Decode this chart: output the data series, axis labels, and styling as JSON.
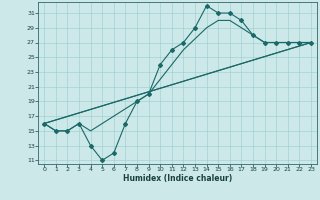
{
  "xlabel": "Humidex (Indice chaleur)",
  "xlim": [
    -0.5,
    23.5
  ],
  "ylim": [
    10.5,
    32.5
  ],
  "yticks": [
    11,
    13,
    15,
    17,
    19,
    21,
    23,
    25,
    27,
    29,
    31
  ],
  "xticks": [
    0,
    1,
    2,
    3,
    4,
    5,
    6,
    7,
    8,
    9,
    10,
    11,
    12,
    13,
    14,
    15,
    16,
    17,
    18,
    19,
    20,
    21,
    22,
    23
  ],
  "bg_color": "#cce8e8",
  "line_color": "#1a6868",
  "jagged_x": [
    0,
    1,
    2,
    3,
    4,
    5,
    6,
    7,
    8,
    9,
    10,
    11,
    12,
    13,
    14,
    15,
    16,
    17,
    18,
    19,
    20,
    21,
    22,
    23
  ],
  "jagged_y": [
    16,
    15,
    15,
    16,
    13,
    11,
    12,
    16,
    19,
    20,
    24,
    26,
    27,
    29,
    32,
    31,
    31,
    30,
    28,
    27,
    27,
    27,
    27,
    27
  ],
  "smooth_x": [
    0,
    1,
    2,
    3,
    4,
    5,
    6,
    7,
    8,
    9,
    10,
    11,
    12,
    13,
    14,
    15,
    16,
    17,
    18,
    19,
    20,
    21,
    22,
    23
  ],
  "smooth_y": [
    16,
    15,
    15,
    16,
    15,
    16,
    17,
    18,
    19,
    20,
    22,
    24,
    26,
    27.5,
    29,
    30,
    30,
    29,
    28,
    27,
    27,
    27,
    27,
    27
  ],
  "line1_x": [
    0,
    23
  ],
  "line1_y": [
    16,
    27
  ],
  "line2_x": [
    0,
    23
  ],
  "line2_y": [
    16,
    27
  ]
}
